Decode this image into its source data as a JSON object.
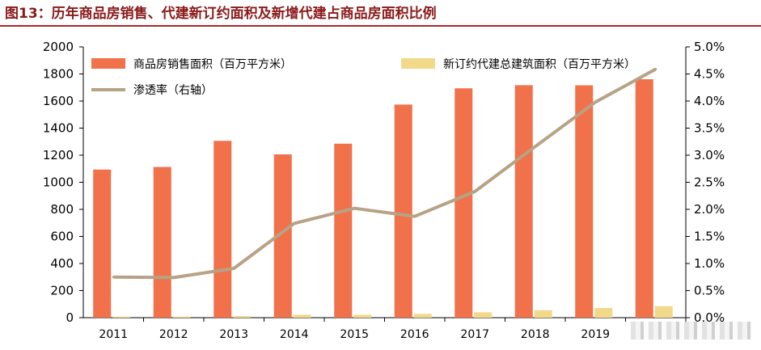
{
  "title": "图13：历年商品房销售、代建新订约面积及新增代建占商品房面积比例",
  "colors": {
    "sales_bar": "#f0714a",
    "contract_bar": "#f2d98a",
    "ratio_line": "#b8a285",
    "title": "#8b1a1a"
  },
  "chart_data": {
    "type": "bar",
    "categories": [
      "2011",
      "2012",
      "2013",
      "2014",
      "2015",
      "2016",
      "2017",
      "2018",
      "2019",
      ""
    ],
    "series": [
      {
        "name": "商品房销售面积（百万平方米）",
        "kind": "bar",
        "axis": "left",
        "values": [
          1094,
          1113,
          1306,
          1206,
          1285,
          1574,
          1694,
          1717,
          1716,
          1761
        ]
      },
      {
        "name": "新订约代建总建筑面积（百万平方米）",
        "kind": "bar",
        "axis": "left",
        "values": [
          8,
          8,
          12,
          22,
          22,
          28,
          40,
          55,
          72,
          85
        ]
      },
      {
        "name": "渗透率（右轴）",
        "kind": "line",
        "axis": "right",
        "values": [
          0.75,
          0.74,
          0.91,
          1.74,
          2.02,
          1.87,
          2.33,
          3.16,
          3.98,
          4.59
        ]
      }
    ],
    "y_left": {
      "min": 0,
      "max": 2000,
      "step": 200,
      "ticks": [
        "0",
        "200",
        "400",
        "600",
        "800",
        "1000",
        "1200",
        "1400",
        "1600",
        "1800",
        "2000"
      ]
    },
    "y_right": {
      "min": 0,
      "max": 5,
      "step": 0.5,
      "ticks": [
        "0.0%",
        "0.5%",
        "1.0%",
        "1.5%",
        "2.0%",
        "2.5%",
        "3.0%",
        "3.5%",
        "4.0%",
        "4.5%",
        "5.0%"
      ]
    },
    "grid": false,
    "legend": "top"
  }
}
